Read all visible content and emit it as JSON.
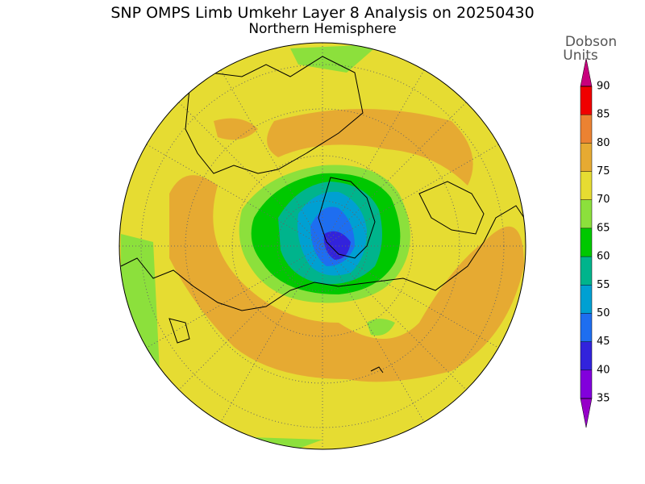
{
  "header": {
    "title": "SNP OMPS Limb Umkehr Layer 8 Analysis on 20250430",
    "subtitle": "Northern Hemisphere"
  },
  "colorbar": {
    "label_lines": [
      "Dobson",
      "Units"
    ],
    "ticks": [
      35,
      40,
      45,
      50,
      55,
      60,
      65,
      70,
      75,
      80,
      85,
      90
    ],
    "colors": [
      "#8200dc",
      "#3223dc",
      "#1e6ef0",
      "#00a0d2",
      "#00b48c",
      "#00c800",
      "#8ce03c",
      "#e6dc32",
      "#e6aa32",
      "#eb8232",
      "#f00000"
    ],
    "under_color": "#9600c8",
    "over_color": "#c8007d"
  }
}
